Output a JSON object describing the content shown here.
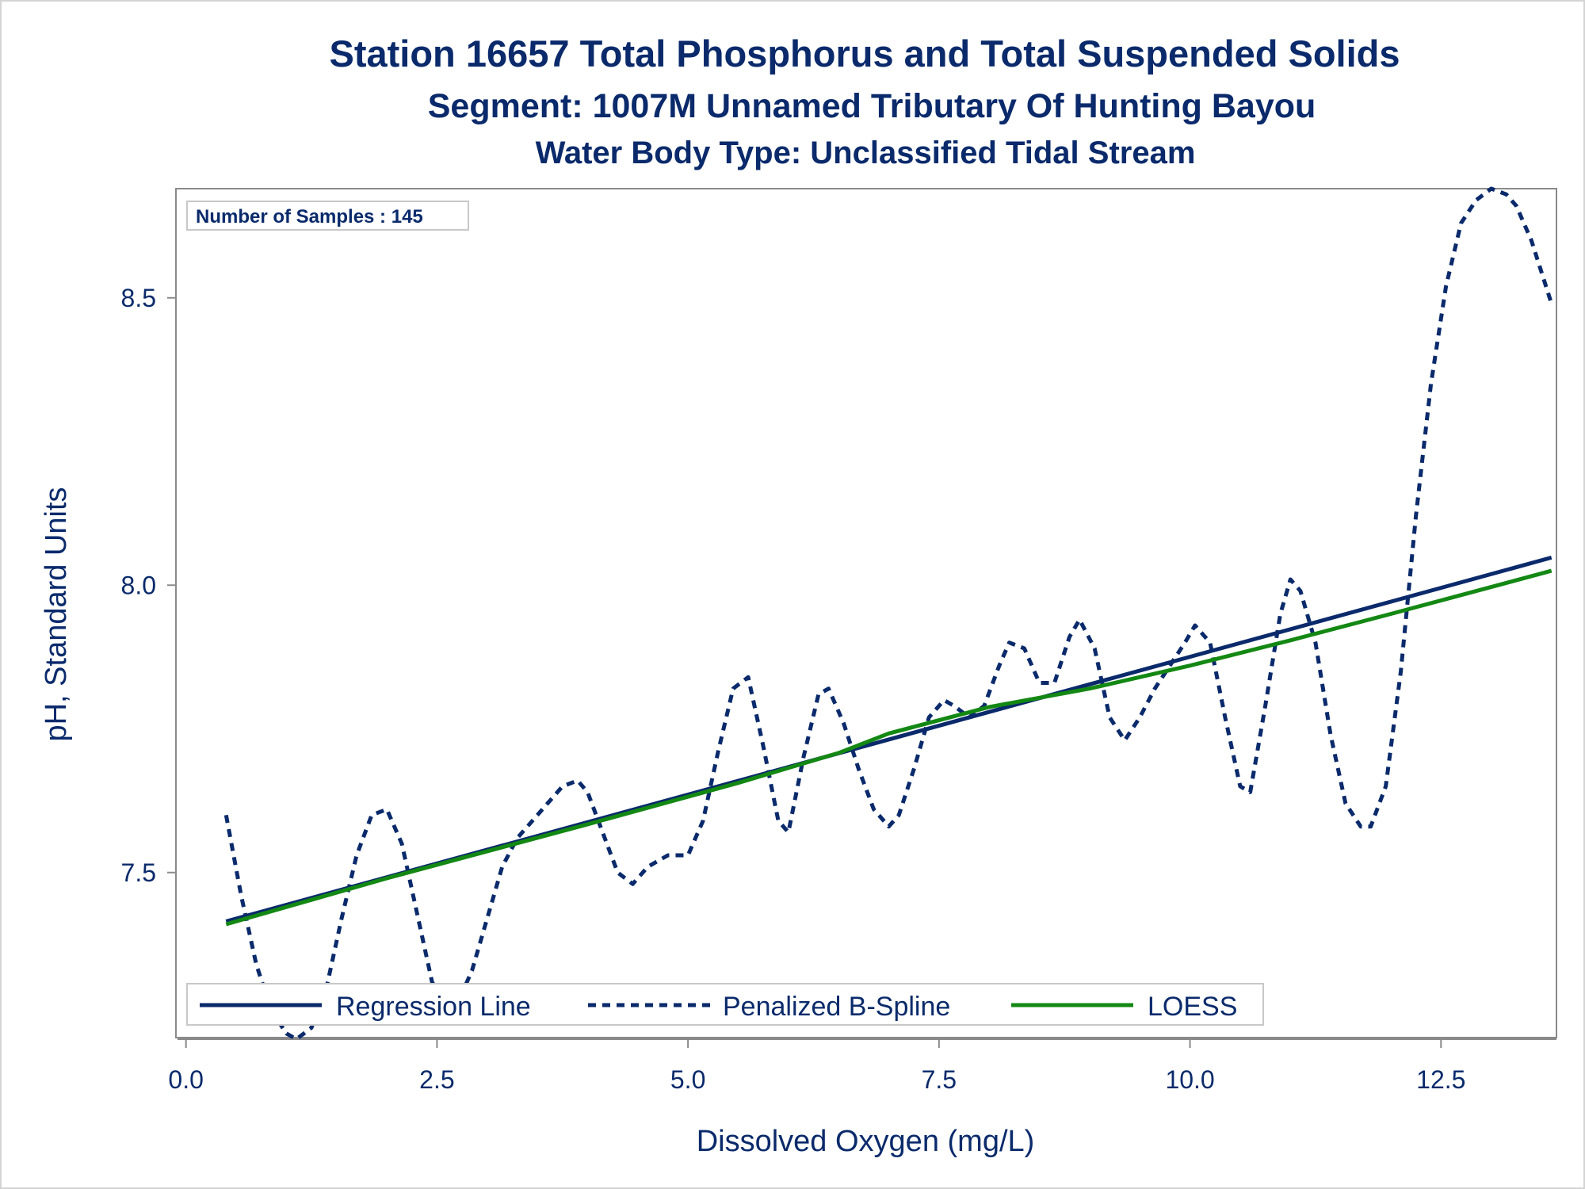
{
  "chart_data": {
    "type": "line",
    "title": "Station 16657  Total Phosphorus and Total Suspended Solids",
    "subtitle": "Segment: 1007M  Unnamed Tributary Of Hunting Bayou",
    "subtitle2": "Water Body Type: Unclassified Tidal Stream",
    "xlabel": "Dissolved Oxygen (mg/L)",
    "ylabel": "pH, Standard Units",
    "xlim": [
      -0.1,
      13.65
    ],
    "ylim": [
      7.21,
      8.69
    ],
    "xticks": [
      0.0,
      2.5,
      5.0,
      7.5,
      10.0,
      12.5
    ],
    "xtick_labels": [
      "0.0",
      "2.5",
      "5.0",
      "7.5",
      "10.0",
      "12.5"
    ],
    "yticks": [
      7.5,
      8.0,
      8.5
    ],
    "ytick_labels": [
      "7.5",
      "8.0",
      "8.5"
    ],
    "inset_text": "Number of Samples : 145",
    "legend_position": "bottom-inside",
    "series": [
      {
        "name": "Regression Line",
        "style": "solid",
        "color": "#0a2a6b",
        "x": [
          0.4,
          13.6
        ],
        "y": [
          7.415,
          8.048
        ]
      },
      {
        "name": "Penalized B-Spline",
        "style": "dashed",
        "color": "#0a2a6b",
        "x": [
          0.4,
          0.55,
          0.7,
          0.85,
          1.0,
          1.1,
          1.25,
          1.4,
          1.55,
          1.7,
          1.85,
          2.0,
          2.15,
          2.3,
          2.45,
          2.6,
          2.7,
          2.85,
          3.0,
          3.15,
          3.3,
          3.45,
          3.6,
          3.75,
          3.9,
          4.0,
          4.15,
          4.3,
          4.45,
          4.6,
          4.8,
          5.0,
          5.15,
          5.3,
          5.45,
          5.6,
          5.75,
          5.9,
          6.0,
          6.15,
          6.3,
          6.4,
          6.55,
          6.7,
          6.85,
          7.0,
          7.1,
          7.25,
          7.4,
          7.55,
          7.65,
          7.8,
          7.95,
          8.1,
          8.2,
          8.35,
          8.5,
          8.65,
          8.8,
          8.9,
          9.05,
          9.2,
          9.35,
          9.5,
          9.65,
          9.8,
          9.95,
          10.05,
          10.2,
          10.35,
          10.5,
          10.6,
          10.75,
          10.9,
          11.0,
          11.1,
          11.25,
          11.4,
          11.55,
          11.7,
          11.8,
          11.95,
          12.1,
          12.25,
          12.4,
          12.55,
          12.7,
          12.85,
          13.0,
          13.15,
          13.25,
          13.4,
          13.6
        ],
        "y": [
          7.6,
          7.46,
          7.34,
          7.26,
          7.22,
          7.21,
          7.23,
          7.3,
          7.42,
          7.53,
          7.6,
          7.61,
          7.55,
          7.43,
          7.31,
          7.26,
          7.27,
          7.33,
          7.42,
          7.51,
          7.56,
          7.59,
          7.62,
          7.65,
          7.66,
          7.64,
          7.57,
          7.5,
          7.48,
          7.51,
          7.53,
          7.53,
          7.59,
          7.71,
          7.82,
          7.84,
          7.72,
          7.59,
          7.57,
          7.7,
          7.81,
          7.82,
          7.76,
          7.68,
          7.61,
          7.58,
          7.6,
          7.68,
          7.77,
          7.8,
          7.79,
          7.77,
          7.79,
          7.86,
          7.9,
          7.89,
          7.83,
          7.83,
          7.91,
          7.94,
          7.89,
          7.77,
          7.73,
          7.77,
          7.82,
          7.86,
          7.9,
          7.93,
          7.9,
          7.77,
          7.65,
          7.64,
          7.79,
          7.95,
          8.01,
          7.99,
          7.9,
          7.74,
          7.62,
          7.58,
          7.58,
          7.65,
          7.85,
          8.12,
          8.35,
          8.52,
          8.63,
          8.67,
          8.69,
          8.68,
          8.66,
          8.6,
          8.49
        ]
      },
      {
        "name": "LOESS",
        "style": "solid",
        "color": "#138813",
        "x": [
          0.4,
          2.0,
          4.0,
          5.5,
          6.5,
          7.0,
          8.0,
          9.0,
          10.0,
          11.0,
          12.0,
          13.6
        ],
        "y": [
          7.41,
          7.49,
          7.584,
          7.656,
          7.708,
          7.742,
          7.788,
          7.82,
          7.86,
          7.904,
          7.95,
          8.025
        ]
      }
    ]
  }
}
